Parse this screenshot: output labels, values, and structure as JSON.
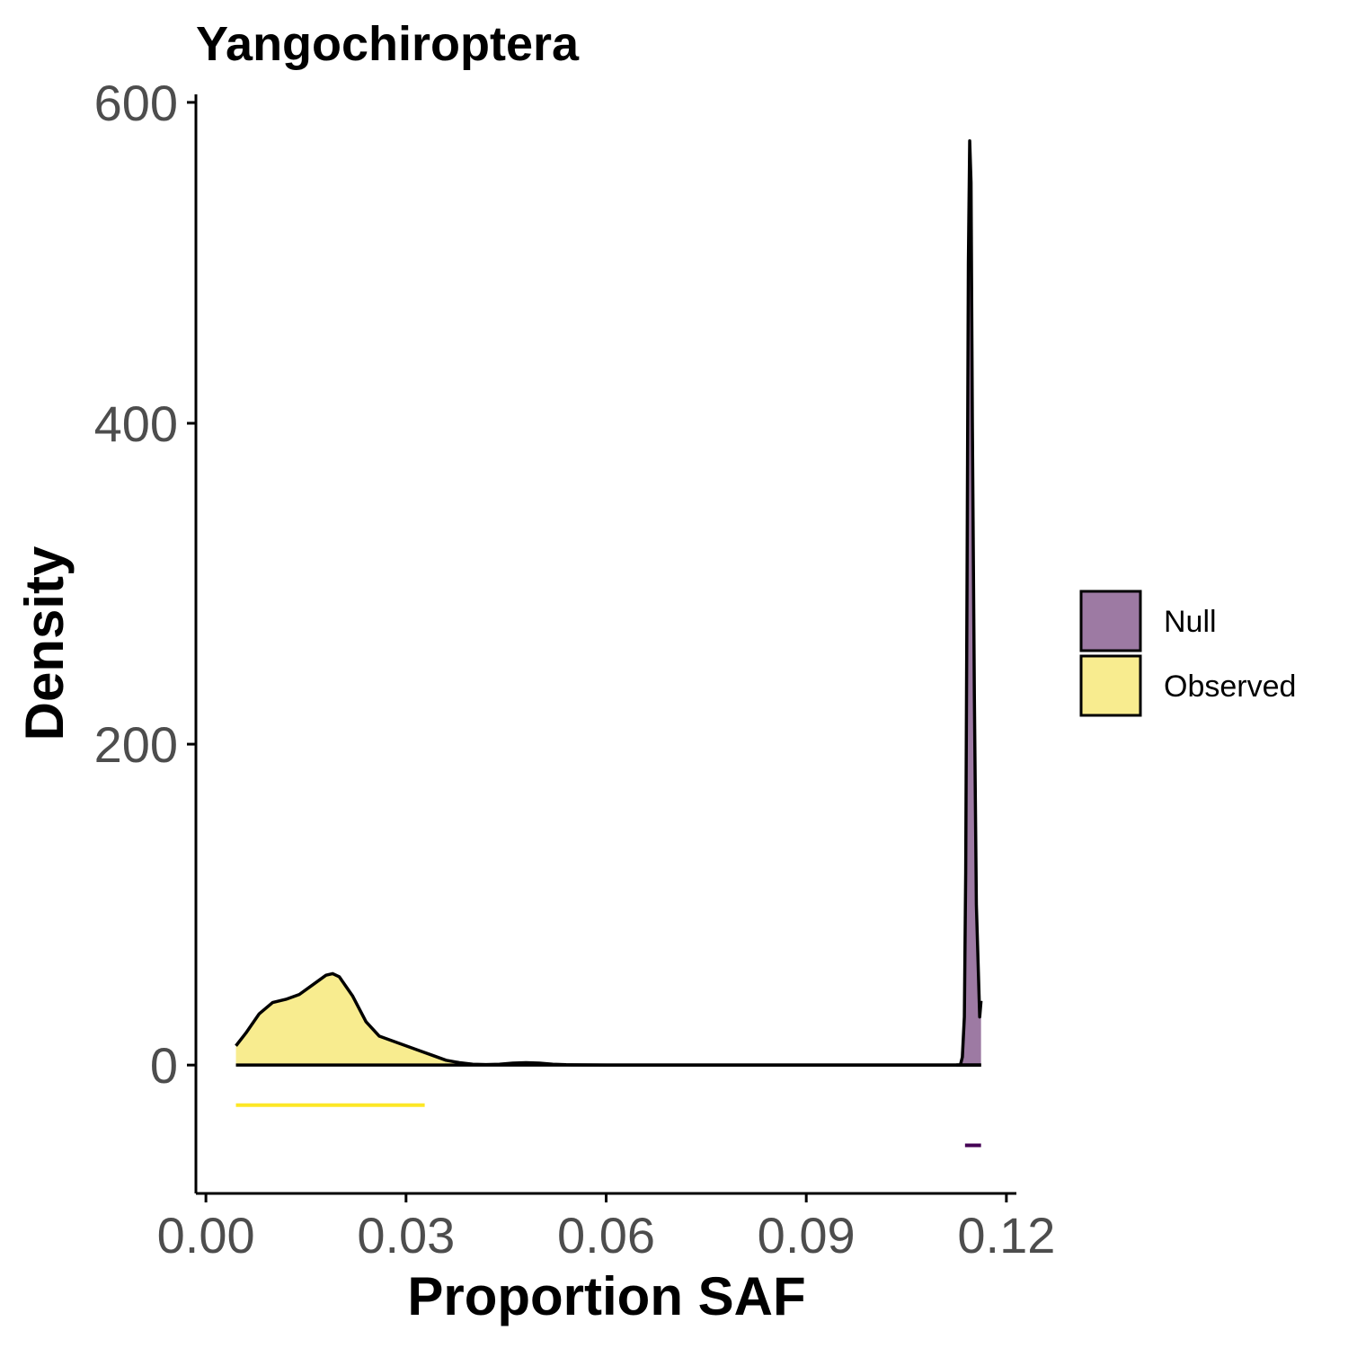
{
  "chart_data": {
    "type": "area",
    "title": "Yangochiroptera",
    "xlabel": "Proportion SAF",
    "ylabel": "Density",
    "xlim": [
      -0.0015,
      0.1215
    ],
    "ylim": [
      -80,
      605
    ],
    "xticks": [
      0.0,
      0.03,
      0.06,
      0.09,
      0.12
    ],
    "xtick_labels": [
      "0.00",
      "0.03",
      "0.06",
      "0.09",
      "0.12"
    ],
    "yticks": [
      0,
      200,
      400,
      600
    ],
    "ytick_labels": [
      "0",
      "200",
      "400",
      "600"
    ],
    "grid": false,
    "legend_position": "right",
    "series": [
      {
        "name": "Null",
        "color": "#440154",
        "fill": "#9d7aa3",
        "density": {
          "x": [
            0.1125,
            0.1131,
            0.1134,
            0.1137,
            0.1139,
            0.1141,
            0.1143,
            0.1145,
            0.1147,
            0.1149,
            0.1152,
            0.1155,
            0.116,
            0.1162
          ],
          "y": [
            0,
            0,
            5,
            30,
            120,
            300,
            500,
            576,
            550,
            400,
            230,
            100,
            30,
            40
          ]
        },
        "interval": [
          0.1138,
          0.1162
        ]
      },
      {
        "name": "Observed",
        "color": "#fde725",
        "fill": "#f8ec8f",
        "density": {
          "x": [
            0.0045,
            0.006,
            0.008,
            0.01,
            0.012,
            0.014,
            0.016,
            0.018,
            0.019,
            0.02,
            0.022,
            0.024,
            0.026,
            0.028,
            0.03,
            0.032,
            0.034,
            0.036,
            0.038,
            0.04,
            0.042,
            0.044,
            0.046,
            0.048,
            0.05,
            0.052,
            0.054,
            0.06,
            0.07,
            0.08,
            0.09,
            0.1,
            0.11,
            0.1162
          ],
          "y": [
            12,
            20,
            32,
            39,
            41,
            44,
            50,
            56,
            57,
            55,
            43,
            27,
            18,
            15,
            12,
            9,
            6,
            3,
            1.5,
            0.5,
            0.3,
            0.5,
            1.2,
            1.5,
            1.2,
            0.5,
            0.2,
            0,
            0,
            0,
            0,
            0,
            0,
            0
          ]
        },
        "interval": [
          0.0045,
          0.0328
        ]
      }
    ]
  }
}
